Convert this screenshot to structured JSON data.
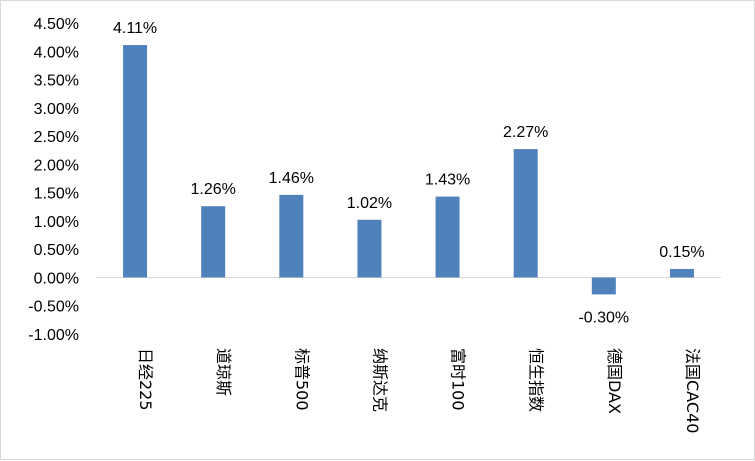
{
  "chart_data": {
    "type": "bar",
    "title": "",
    "xlabel": "",
    "ylabel": "",
    "categories": [
      "日经225",
      "道琼斯",
      "标普500",
      "纳斯达克",
      "富时100",
      "恒生指数",
      "德国DAX",
      "法国CAC40"
    ],
    "values": [
      4.11,
      1.26,
      1.46,
      1.02,
      1.43,
      2.27,
      -0.3,
      0.15
    ],
    "data_labels": [
      "4.11%",
      "1.26%",
      "1.46%",
      "1.02%",
      "1.43%",
      "2.27%",
      "-0.30%",
      "0.15%"
    ],
    "ylim": [
      -1.0,
      4.5
    ],
    "y_ticks": [
      "-1.00%",
      "-0.50%",
      "0.00%",
      "0.50%",
      "1.00%",
      "1.50%",
      "2.00%",
      "2.50%",
      "3.00%",
      "3.50%",
      "4.00%",
      "4.50%"
    ],
    "grid": false,
    "legend": "none",
    "bar_color": "#4f81bd"
  }
}
